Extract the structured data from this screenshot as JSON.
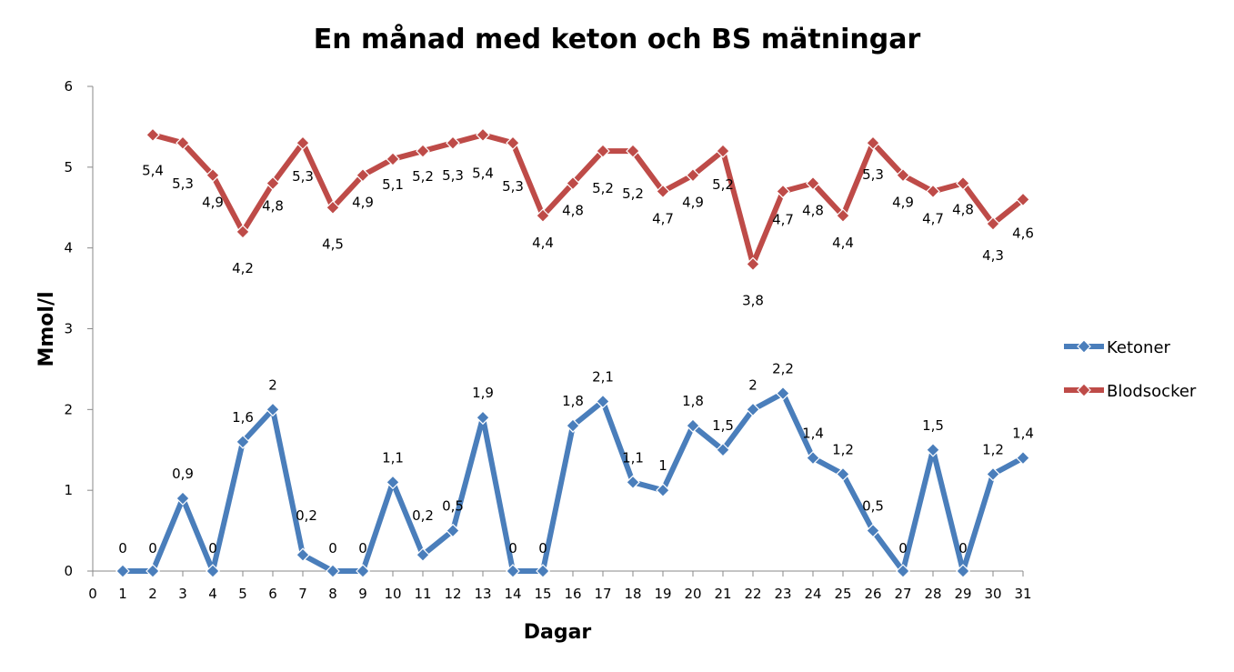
{
  "chart_data": {
    "type": "line",
    "title": "En månad med keton och BS mätningar",
    "xlabel": "Dagar",
    "ylabel": "Mmol/l",
    "xlim": [
      0,
      31
    ],
    "ylim": [
      0,
      6
    ],
    "x_ticks": [
      "0",
      "1",
      "2",
      "3",
      "4",
      "5",
      "6",
      "7",
      "8",
      "9",
      "10",
      "11",
      "12",
      "13",
      "14",
      "15",
      "16",
      "17",
      "18",
      "19",
      "20",
      "21",
      "22",
      "23",
      "24",
      "25",
      "26",
      "27",
      "28",
      "29",
      "30",
      "31"
    ],
    "y_ticks": [
      "0",
      "1",
      "2",
      "3",
      "4",
      "5",
      "6"
    ],
    "grid": false,
    "legend_position": "right",
    "series": [
      {
        "name": "Ketoner",
        "color": "#4A7EBB",
        "marker": "diamond",
        "x": [
          1,
          2,
          3,
          4,
          5,
          6,
          7,
          8,
          9,
          10,
          11,
          12,
          13,
          14,
          15,
          16,
          17,
          18,
          19,
          20,
          21,
          22,
          23,
          24,
          25,
          26,
          27,
          28,
          29,
          30,
          31
        ],
        "values": [
          0,
          0,
          0.9,
          0,
          1.6,
          2,
          0.2,
          0,
          0,
          1.1,
          0.2,
          0.5,
          1.9,
          0,
          0,
          1.8,
          2.1,
          1.1,
          1,
          1.8,
          1.5,
          2,
          2.2,
          1.4,
          1.2,
          0.5,
          0,
          1.5,
          0,
          1.2,
          1.4
        ],
        "labels": [
          "0",
          "0",
          "0,9",
          "0",
          "1,6",
          "2",
          "0,2",
          "0",
          "0",
          "1,1",
          "0,2",
          "0,5",
          "1,9",
          "0",
          "0",
          "1,8",
          "2,1",
          "1,1",
          "1",
          "1,8",
          "1,5",
          "2",
          "2,2",
          "1,4",
          "1,2",
          "0,5",
          "0",
          "1,5",
          "0",
          "1,2",
          "1,4"
        ]
      },
      {
        "name": "Blodsocker",
        "color": "#BE4B48",
        "marker": "diamond",
        "x": [
          2,
          3,
          4,
          5,
          6,
          7,
          8,
          9,
          10,
          11,
          12,
          13,
          14,
          15,
          16,
          17,
          18,
          19,
          20,
          21,
          22,
          23,
          24,
          25,
          26,
          27,
          28,
          29,
          30,
          31
        ],
        "values": [
          5.4,
          5.3,
          4.9,
          4.2,
          4.8,
          5.3,
          4.5,
          4.9,
          5.1,
          5.2,
          5.3,
          5.4,
          5.3,
          4.4,
          4.8,
          5.2,
          5.2,
          4.7,
          4.9,
          5.2,
          3.8,
          4.7,
          4.8,
          4.4,
          5.3,
          4.9,
          4.7,
          4.8,
          4.3,
          4.6
        ],
        "labels": [
          "5,4",
          "5,3",
          "4,9",
          "4,2",
          "4,8",
          "5,3",
          "4,5",
          "4,9",
          "5,1",
          "5,2",
          "5,3",
          "5,4",
          "5,3",
          "4,4",
          "4,8",
          "5,2",
          "5,2",
          "4,7",
          "4,9",
          "5,2",
          "3,8",
          "4,7",
          "4,8",
          "4,4",
          "5,3",
          "4,9",
          "4,7",
          "4,8",
          "4,3",
          "4,6"
        ]
      }
    ]
  }
}
